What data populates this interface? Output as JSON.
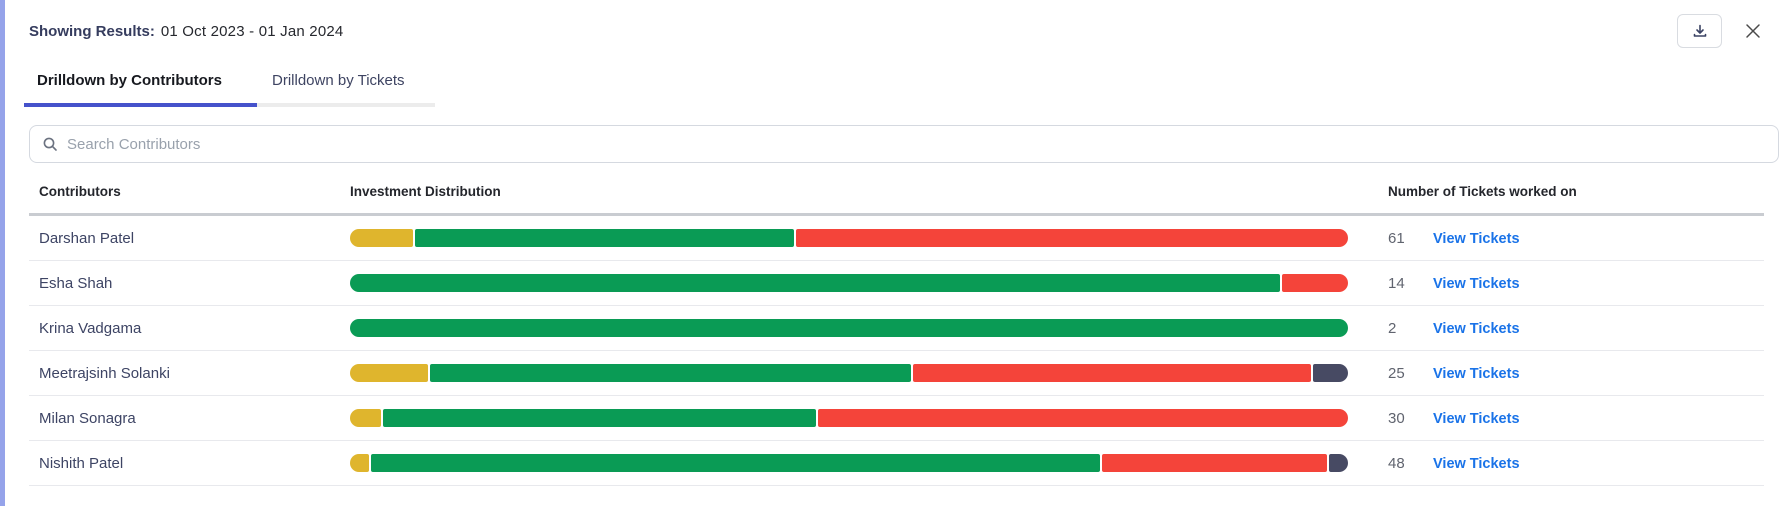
{
  "header": {
    "results_label": "Showing Results:",
    "results_value": "01 Oct 2023 - 01 Jan 2024"
  },
  "tabs": [
    {
      "label": "Drilldown by Contributors",
      "active": true
    },
    {
      "label": "Drilldown by Tickets",
      "active": false
    }
  ],
  "search": {
    "placeholder": "Search Contributors"
  },
  "table": {
    "columns": [
      "Contributors",
      "Investment Distribution",
      "Number of Tickets worked on"
    ],
    "link_label": "View Tickets",
    "rows": [
      {
        "name": "Darshan Patel",
        "tickets": "61",
        "segments": [
          {
            "label": "yellow",
            "pct": 6.3
          },
          {
            "label": "green",
            "pct": 38.2
          },
          {
            "label": "red",
            "pct": 55.5
          }
        ]
      },
      {
        "name": "Esha Shah",
        "tickets": "14",
        "segments": [
          {
            "label": "green",
            "pct": 93.4
          },
          {
            "label": "red",
            "pct": 6.6
          }
        ]
      },
      {
        "name": "Krina Vadgama",
        "tickets": "2",
        "segments": [
          {
            "label": "green",
            "pct": 100
          }
        ]
      },
      {
        "name": "Meetrajsinh Solanki",
        "tickets": "25",
        "segments": [
          {
            "label": "yellow",
            "pct": 7.9
          },
          {
            "label": "green",
            "pct": 48.4
          },
          {
            "label": "red",
            "pct": 40.2
          },
          {
            "label": "dark",
            "pct": 3.5
          }
        ]
      },
      {
        "name": "Milan Sonagra",
        "tickets": "30",
        "segments": [
          {
            "label": "yellow",
            "pct": 3.1
          },
          {
            "label": "green",
            "pct": 43.6
          },
          {
            "label": "red",
            "pct": 53.3
          }
        ]
      },
      {
        "name": "Nishith Patel",
        "tickets": "48",
        "segments": [
          {
            "label": "yellow",
            "pct": 1.9
          },
          {
            "label": "green",
            "pct": 73.5
          },
          {
            "label": "red",
            "pct": 22.7
          },
          {
            "label": "dark",
            "pct": 1.9
          }
        ]
      }
    ]
  },
  "colors": {
    "yellow": "#DFB52D",
    "green": "#0A9B55",
    "red": "#F4443A",
    "dark": "#474A63",
    "accent_stripe": "#95A3EA",
    "tab_active_underline": "#4552CB",
    "link_blue": "#1A73E8"
  }
}
